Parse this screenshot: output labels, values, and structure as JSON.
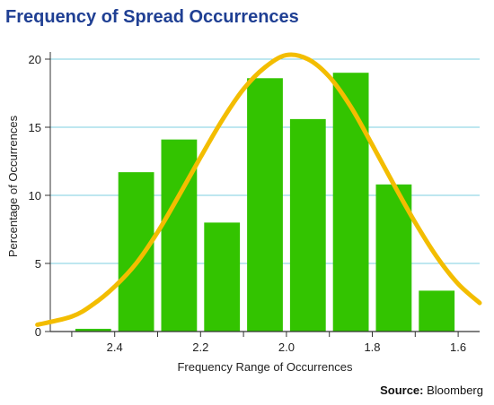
{
  "chart_data": {
    "type": "bar",
    "title": "Frequency of Spread Occurrences",
    "xlabel": "Frequency Range of Occurrences",
    "ylabel": "Percentage of Occurrences",
    "ylim": [
      0,
      20
    ],
    "xlim": [
      2.6,
      1.6
    ],
    "x_reversed": true,
    "yticks": [
      "0",
      "5",
      "10",
      "15",
      "20"
    ],
    "xticks": [
      "2.4",
      "2.2",
      "2.0",
      "1.8",
      "1.6"
    ],
    "xtick_values": [
      2.4,
      2.2,
      2.0,
      1.8,
      1.6
    ],
    "grid": "horizontal",
    "bar_color": "#33c400",
    "curve_color": "#f3bd00",
    "bins": [
      {
        "x": 2.5,
        "value": 0.2
      },
      {
        "x": 2.4,
        "value": 11.7
      },
      {
        "x": 2.3,
        "value": 14.1
      },
      {
        "x": 2.2,
        "value": 8.0
      },
      {
        "x": 2.1,
        "value": 18.6
      },
      {
        "x": 2.0,
        "value": 15.6
      },
      {
        "x": 1.9,
        "value": 19.0
      },
      {
        "x": 1.8,
        "value": 10.8
      },
      {
        "x": 1.7,
        "value": 3.0
      }
    ],
    "curve": [
      {
        "x": 2.63,
        "y": 0.5
      },
      {
        "x": 2.55,
        "y": 1.1
      },
      {
        "x": 2.5,
        "y": 2.0
      },
      {
        "x": 2.45,
        "y": 3.3
      },
      {
        "x": 2.4,
        "y": 5.0
      },
      {
        "x": 2.35,
        "y": 7.3
      },
      {
        "x": 2.3,
        "y": 10.0
      },
      {
        "x": 2.25,
        "y": 12.8
      },
      {
        "x": 2.2,
        "y": 15.5
      },
      {
        "x": 2.15,
        "y": 17.8
      },
      {
        "x": 2.1,
        "y": 19.4
      },
      {
        "x": 2.05,
        "y": 20.3
      },
      {
        "x": 2.0,
        "y": 20.0
      },
      {
        "x": 1.95,
        "y": 18.7
      },
      {
        "x": 1.9,
        "y": 16.5
      },
      {
        "x": 1.85,
        "y": 13.7
      },
      {
        "x": 1.8,
        "y": 10.8
      },
      {
        "x": 1.75,
        "y": 8.0
      },
      {
        "x": 1.7,
        "y": 5.5
      },
      {
        "x": 1.65,
        "y": 3.5
      },
      {
        "x": 1.6,
        "y": 2.1
      }
    ]
  },
  "source": {
    "label": "Source:",
    "value": "Bloomberg"
  }
}
